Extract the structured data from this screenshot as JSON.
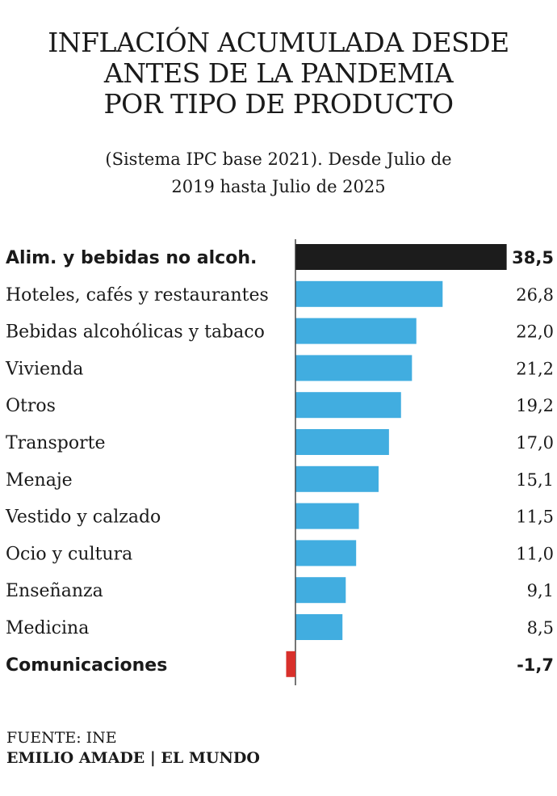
{
  "header": {
    "title": "INFLACIÓN ACUMULADA DESDE\nANTES DE LA PANDEMIA\nPOR TIPO DE PRODUCTO",
    "subtitle": "(Sistema IPC base 2021). Desde Julio de\n2019 hasta Julio de 2025"
  },
  "chart_data": {
    "type": "bar",
    "orientation": "horizontal",
    "categories": [
      "Alim. y bebidas no alcoh.",
      "Hoteles, cafés y restaurantes",
      "Bebidas alcohólicas y tabaco",
      "Vivienda",
      "Otros",
      "Transporte",
      "Menaje",
      "Vestido y calzado",
      "Ocio y cultura",
      "Enseñanza",
      "Medicina",
      "Comunicaciones"
    ],
    "values": [
      38.5,
      26.8,
      22.0,
      21.2,
      19.2,
      17.0,
      15.1,
      11.5,
      11.0,
      9.1,
      8.5,
      -1.7
    ],
    "value_labels": [
      "38,5",
      "26,8",
      "22,0",
      "21,2",
      "19,2",
      "17,0",
      "15,1",
      "11,5",
      "11,0",
      "9,1",
      "8,5",
      "-1,7"
    ],
    "highlighted": [
      "Alim. y bebidas no alcoh.",
      "Comunicaciones"
    ],
    "colors": {
      "highlight": "#1c1c1c",
      "default": "#41ade0",
      "negative": "#d8302b",
      "axis": "#1a1a1a"
    },
    "grid": false,
    "legend": "none"
  },
  "footer": {
    "source": "FUENTE: INE",
    "credit": "EMILIO AMADE | EL MUNDO"
  }
}
